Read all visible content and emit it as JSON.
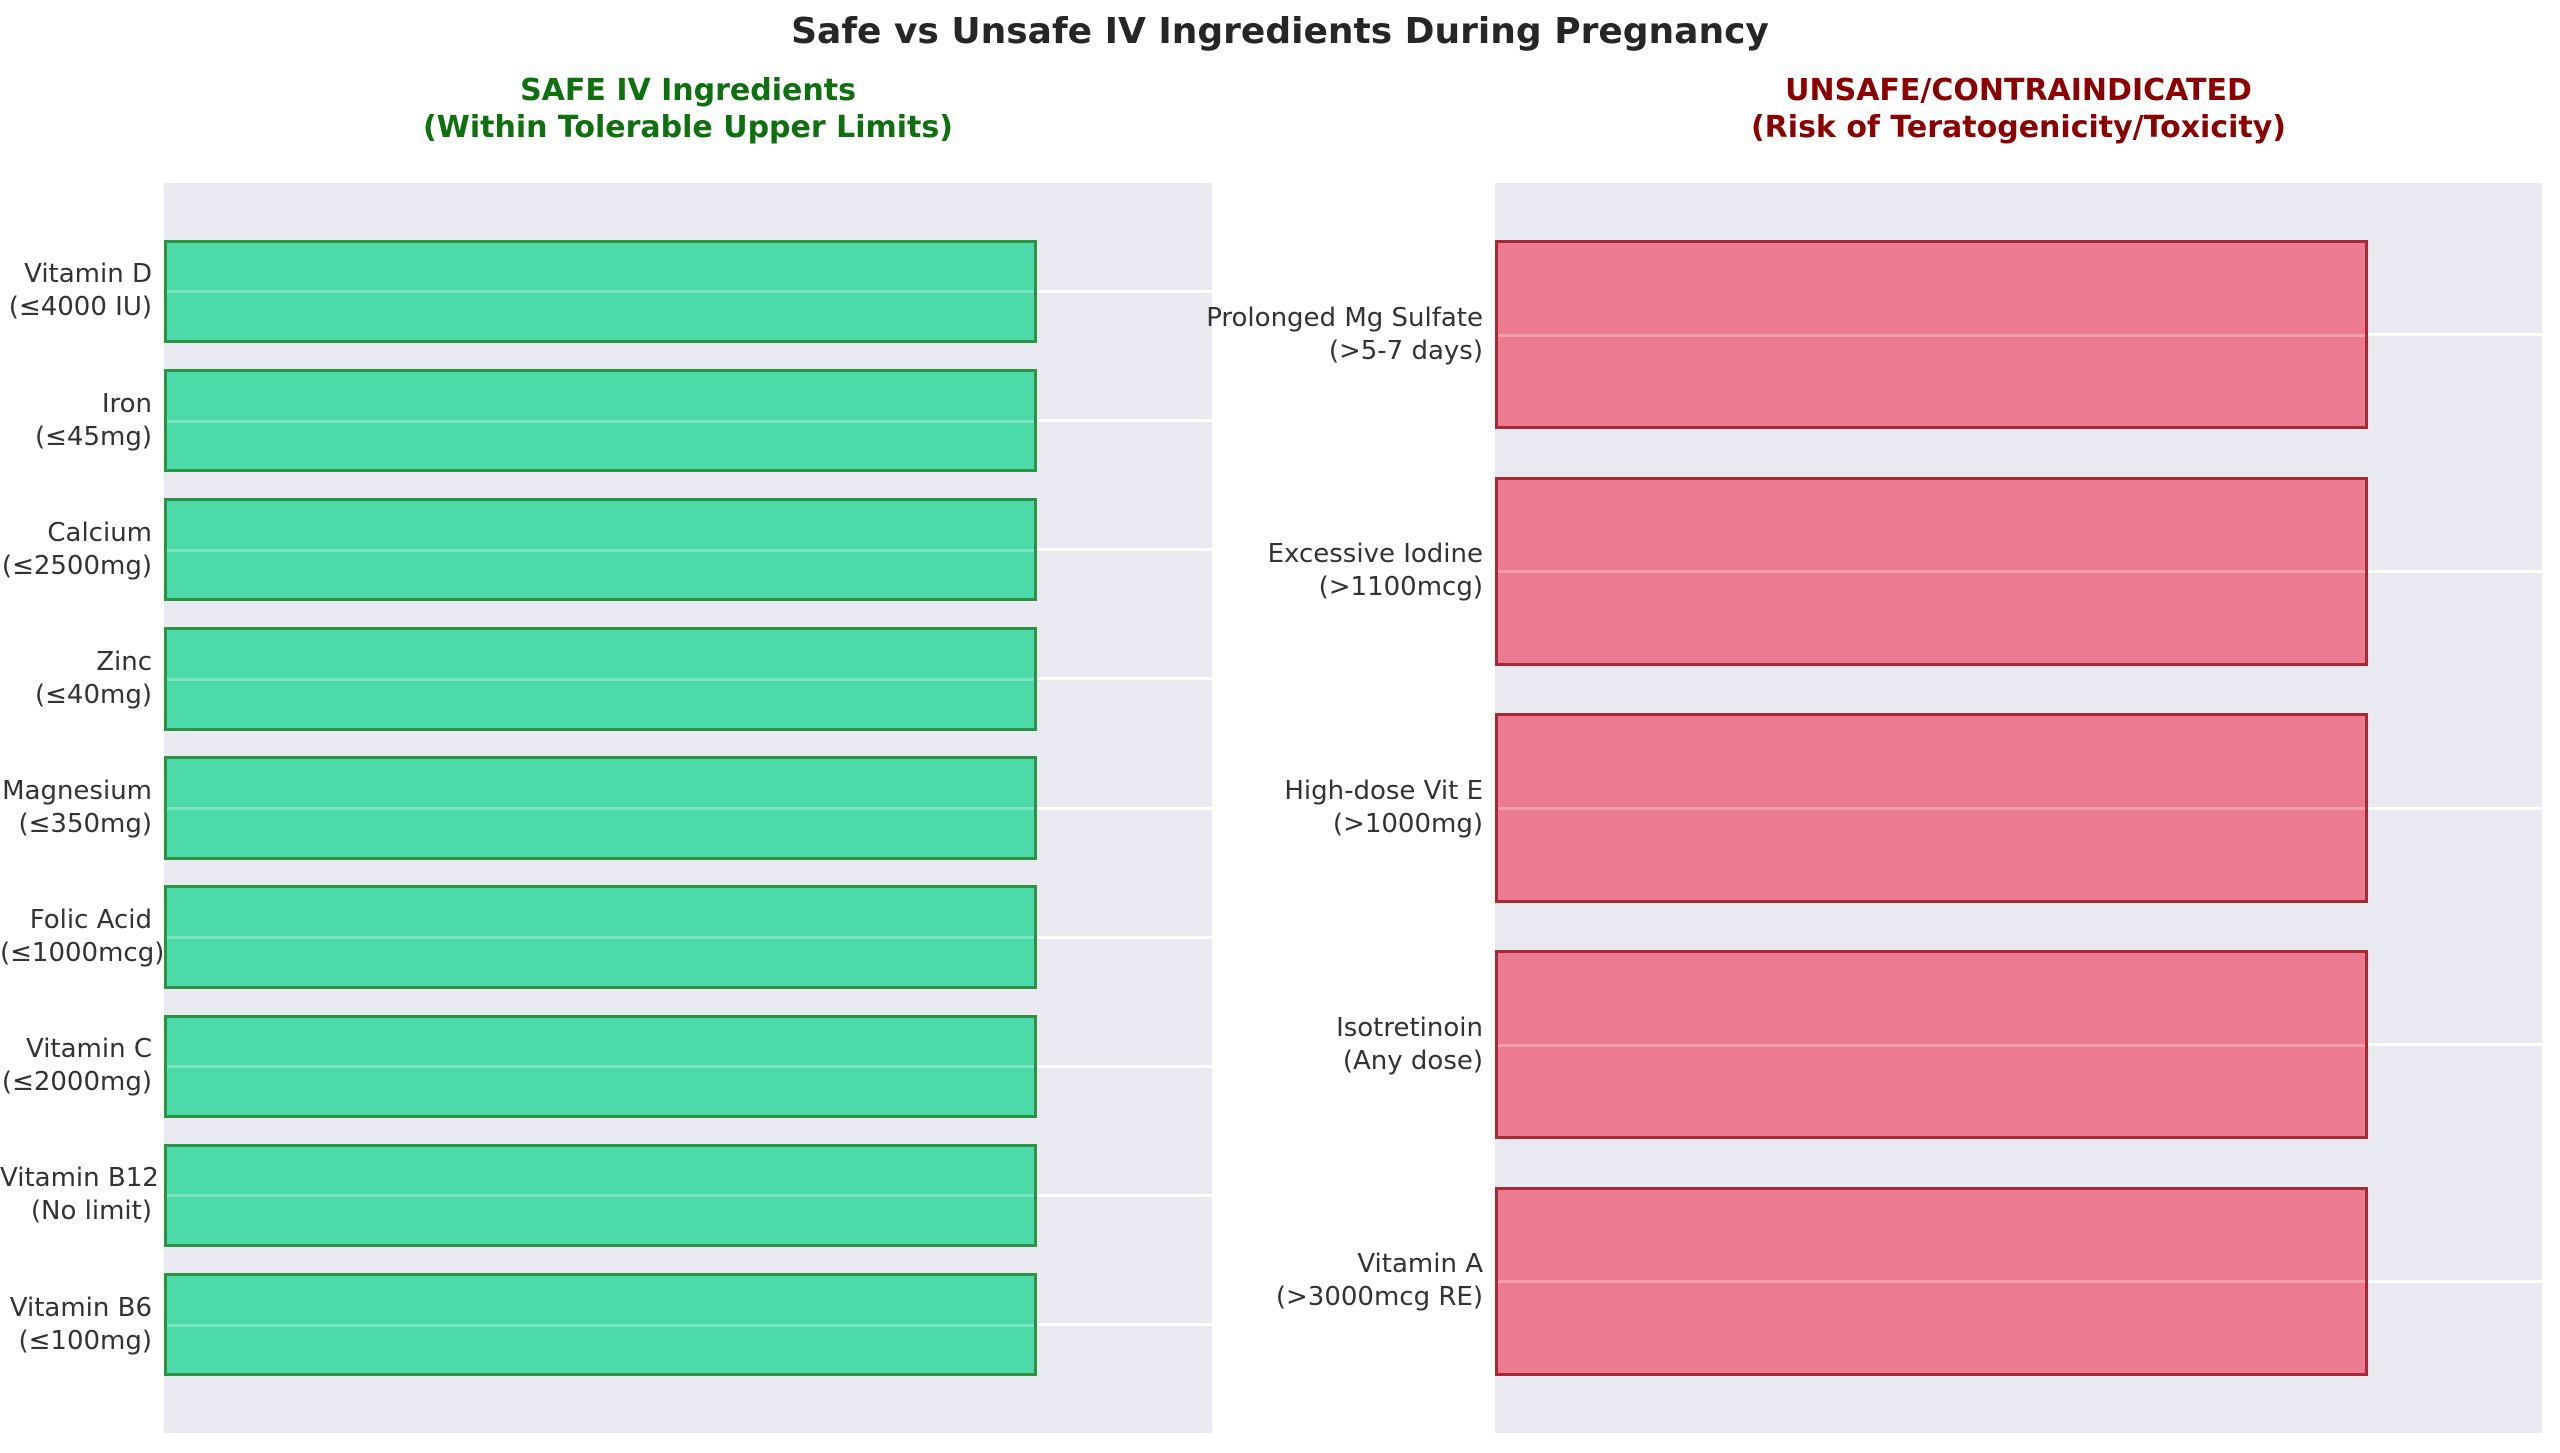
{
  "title": "Safe vs Unsafe IV Ingredients During Pregnancy",
  "colors": {
    "title_text": "#262626",
    "axis_label_text": "#333333",
    "panel_background": "#E9E9F1",
    "gridline": "#FFFFFF",
    "safe_subtitle": "#0E700E",
    "unsafe_subtitle": "#8B0000",
    "safe_bar_fill": "#4CDAA9",
    "safe_bar_edge": "#2E9245",
    "unsafe_bar_fill": "#EC7A90",
    "unsafe_bar_edge": "#A52A35"
  },
  "chart_data": [
    {
      "type": "bar",
      "orientation": "horizontal",
      "panel_id": "safe",
      "title_lines": [
        "SAFE IV Ingredients",
        "(Within Tolerable Upper Limits)"
      ],
      "title_color": "#0E700E",
      "categories": [
        {
          "name": "Vitamin D",
          "limit": "(≤4000 IU)",
          "value": 1
        },
        {
          "name": "Iron",
          "limit": "(≤45mg)",
          "value": 1
        },
        {
          "name": "Calcium",
          "limit": "(≤2500mg)",
          "value": 1
        },
        {
          "name": "Zinc",
          "limit": "(≤40mg)",
          "value": 1
        },
        {
          "name": "Magnesium",
          "limit": "(≤350mg)",
          "value": 1
        },
        {
          "name": "Folic Acid",
          "limit": "(≤1000mcg)",
          "value": 1
        },
        {
          "name": "Vitamin C",
          "limit": "(≤2000mg)",
          "value": 1
        },
        {
          "name": "Vitamin B12",
          "limit": "(No limit)",
          "value": 1
        },
        {
          "name": "Vitamin B6",
          "limit": "(≤100mg)",
          "value": 1
        }
      ],
      "xlim": [
        0,
        1.2
      ],
      "bar_height_units": 0.8,
      "y_margin_fraction": 0.05,
      "bar_color": "#4CDAA9",
      "bar_edge_color": "#2E9245",
      "background": "#E9E9F1",
      "grid": "horizontal white lines at category centers",
      "x_axis_ticks_visible": false
    },
    {
      "type": "bar",
      "orientation": "horizontal",
      "panel_id": "unsafe",
      "title_lines": [
        "UNSAFE/CONTRAINDICATED",
        "(Risk of Teratogenicity/Toxicity)"
      ],
      "title_color": "#8B0000",
      "categories": [
        {
          "name": "Prolonged Mg Sulfate",
          "limit": "(>5-7 days)",
          "value": 1
        },
        {
          "name": "Excessive Iodine",
          "limit": "(>1100mcg)",
          "value": 1
        },
        {
          "name": "High-dose Vit E",
          "limit": "(>1000mg)",
          "value": 1
        },
        {
          "name": "Isotretinoin",
          "limit": "(Any dose)",
          "value": 1
        },
        {
          "name": "Vitamin A",
          "limit": "(>3000mcg RE)",
          "value": 1
        }
      ],
      "xlim": [
        0,
        1.2
      ],
      "bar_height_units": 0.8,
      "y_margin_fraction": 0.05,
      "bar_color": "#EC7A90",
      "bar_edge_color": "#A52A35",
      "background": "#E9E9F1",
      "grid": "horizontal white lines at category centers",
      "x_axis_ticks_visible": false
    }
  ]
}
